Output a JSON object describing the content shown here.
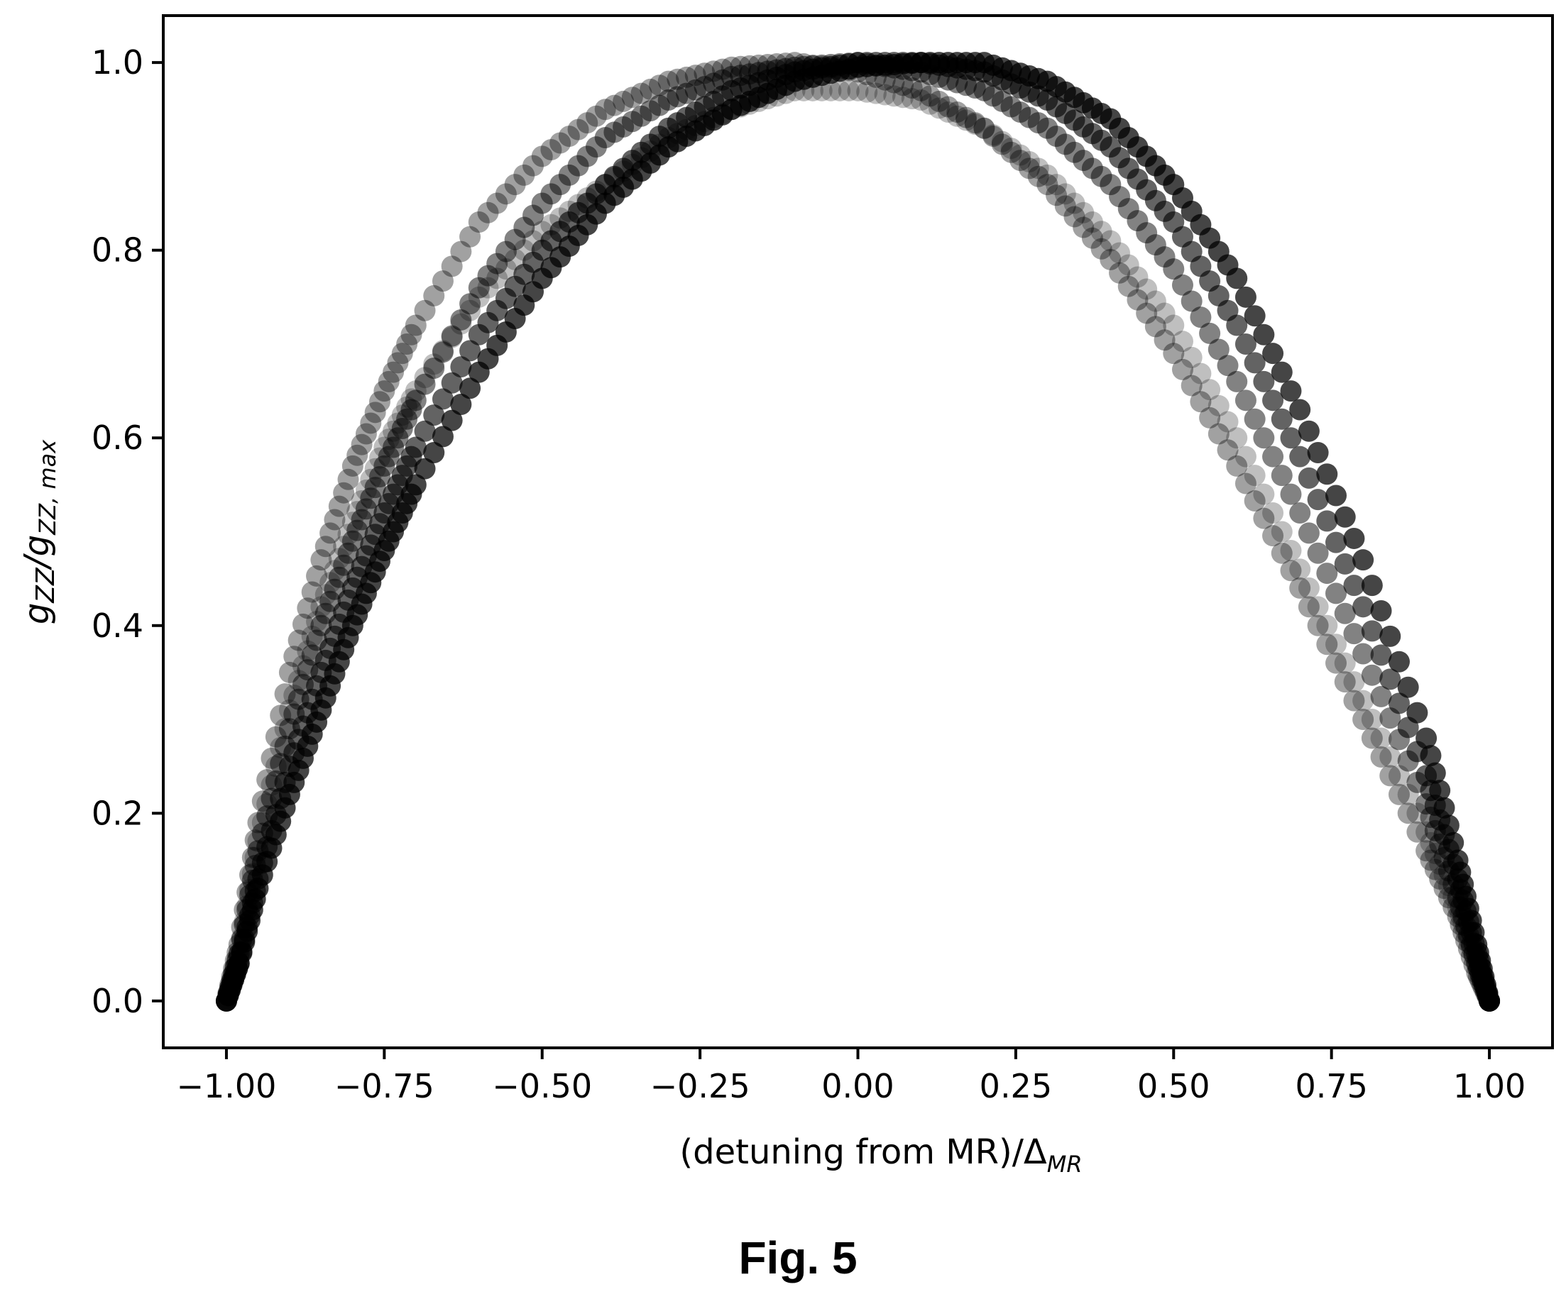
{
  "figure": {
    "caption": "Fig. 5"
  },
  "chart_data": {
    "type": "scatter",
    "title": "",
    "xlabel": {
      "main": "(detuning from MR)/Δ",
      "sub": "MR"
    },
    "ylabel": {
      "main": "g",
      "sub1": "ZZ",
      "sep": "/g",
      "sub2": "ZZ, max"
    },
    "xlim": [
      -1.1,
      1.1
    ],
    "ylim": [
      -0.05,
      1.05
    ],
    "xticks": [
      -1.0,
      -0.75,
      -0.5,
      -0.25,
      0.0,
      0.25,
      0.5,
      0.75,
      1.0
    ],
    "xtick_labels": [
      "−1.00",
      "−0.75",
      "−0.50",
      "−0.25",
      "0.00",
      "0.25",
      "0.50",
      "0.75",
      "1.00"
    ],
    "yticks": [
      0.0,
      0.2,
      0.4,
      0.6,
      0.8,
      1.0
    ],
    "ytick_labels": [
      "0.0",
      "0.2",
      "0.4",
      "0.6",
      "0.8",
      "1.0"
    ],
    "grid": false,
    "legend": "none",
    "marker_color": "#000000",
    "series": [
      {
        "values": [
          [
            -1.0,
            0.0
          ],
          [
            -0.98,
            0.05
          ],
          [
            -0.95,
            0.17
          ],
          [
            -0.9,
            0.31
          ],
          [
            -0.85,
            0.42
          ],
          [
            -0.8,
            0.51
          ],
          [
            -0.75,
            0.59
          ],
          [
            -0.7,
            0.65
          ],
          [
            -0.6,
            0.75
          ],
          [
            -0.5,
            0.82
          ],
          [
            -0.4,
            0.87
          ],
          [
            -0.3,
            0.92
          ],
          [
            -0.2,
            0.95
          ],
          [
            -0.1,
            0.97
          ],
          [
            0.0,
            0.97
          ],
          [
            0.1,
            0.96
          ],
          [
            0.2,
            0.93
          ],
          [
            0.3,
            0.88
          ],
          [
            0.4,
            0.81
          ],
          [
            0.5,
            0.72
          ],
          [
            0.6,
            0.6
          ],
          [
            0.7,
            0.46
          ],
          [
            0.8,
            0.32
          ],
          [
            0.9,
            0.18
          ],
          [
            0.95,
            0.1
          ],
          [
            0.98,
            0.04
          ],
          [
            1.0,
            0.0
          ]
        ]
      },
      {
        "values": [
          [
            -1.0,
            0.0
          ],
          [
            -0.98,
            0.06
          ],
          [
            -0.95,
            0.19
          ],
          [
            -0.9,
            0.35
          ],
          [
            -0.85,
            0.47
          ],
          [
            -0.8,
            0.57
          ],
          [
            -0.75,
            0.65
          ],
          [
            -0.7,
            0.72
          ],
          [
            -0.6,
            0.83
          ],
          [
            -0.5,
            0.9
          ],
          [
            -0.4,
            0.95
          ],
          [
            -0.3,
            0.98
          ],
          [
            -0.2,
            0.995
          ],
          [
            -0.1,
            1.0
          ],
          [
            0.0,
            0.99
          ],
          [
            0.1,
            0.97
          ],
          [
            0.2,
            0.93
          ],
          [
            0.3,
            0.87
          ],
          [
            0.4,
            0.79
          ],
          [
            0.5,
            0.69
          ],
          [
            0.6,
            0.57
          ],
          [
            0.7,
            0.44
          ],
          [
            0.8,
            0.3
          ],
          [
            0.9,
            0.16
          ],
          [
            0.95,
            0.09
          ],
          [
            0.98,
            0.03
          ],
          [
            1.0,
            0.0
          ]
        ]
      },
      {
        "values": [
          [
            -1.0,
            0.0
          ],
          [
            -0.98,
            0.05
          ],
          [
            -0.95,
            0.16
          ],
          [
            -0.9,
            0.29
          ],
          [
            -0.85,
            0.4
          ],
          [
            -0.8,
            0.49
          ],
          [
            -0.75,
            0.57
          ],
          [
            -0.7,
            0.64
          ],
          [
            -0.6,
            0.76
          ],
          [
            -0.5,
            0.85
          ],
          [
            -0.4,
            0.92
          ],
          [
            -0.3,
            0.96
          ],
          [
            -0.2,
            0.985
          ],
          [
            -0.1,
            0.995
          ],
          [
            0.0,
            1.0
          ],
          [
            0.1,
            0.99
          ],
          [
            0.2,
            0.97
          ],
          [
            0.3,
            0.93
          ],
          [
            0.4,
            0.87
          ],
          [
            0.5,
            0.78
          ],
          [
            0.6,
            0.66
          ],
          [
            0.7,
            0.52
          ],
          [
            0.8,
            0.37
          ],
          [
            0.9,
            0.21
          ],
          [
            0.95,
            0.11
          ],
          [
            0.98,
            0.04
          ],
          [
            1.0,
            0.0
          ]
        ]
      },
      {
        "values": [
          [
            -1.0,
            0.0
          ],
          [
            -0.98,
            0.04
          ],
          [
            -0.95,
            0.13
          ],
          [
            -0.9,
            0.25
          ],
          [
            -0.85,
            0.35
          ],
          [
            -0.8,
            0.44
          ],
          [
            -0.75,
            0.52
          ],
          [
            -0.7,
            0.59
          ],
          [
            -0.6,
            0.71
          ],
          [
            -0.5,
            0.8
          ],
          [
            -0.4,
            0.87
          ],
          [
            -0.3,
            0.93
          ],
          [
            -0.2,
            0.97
          ],
          [
            -0.1,
            0.99
          ],
          [
            0.0,
            1.0
          ],
          [
            0.1,
            1.0
          ],
          [
            0.2,
            0.99
          ],
          [
            0.3,
            0.96
          ],
          [
            0.4,
            0.91
          ],
          [
            0.5,
            0.83
          ],
          [
            0.6,
            0.72
          ],
          [
            0.7,
            0.58
          ],
          [
            0.8,
            0.42
          ],
          [
            0.9,
            0.24
          ],
          [
            0.95,
            0.13
          ],
          [
            0.98,
            0.05
          ],
          [
            1.0,
            0.0
          ]
        ]
      },
      {
        "values": [
          [
            -1.0,
            0.0
          ],
          [
            -0.98,
            0.04
          ],
          [
            -0.95,
            0.12
          ],
          [
            -0.9,
            0.22
          ],
          [
            -0.85,
            0.31
          ],
          [
            -0.8,
            0.4
          ],
          [
            -0.75,
            0.48
          ],
          [
            -0.7,
            0.55
          ],
          [
            -0.6,
            0.67
          ],
          [
            -0.5,
            0.77
          ],
          [
            -0.4,
            0.85
          ],
          [
            -0.3,
            0.91
          ],
          [
            -0.2,
            0.95
          ],
          [
            -0.1,
            0.98
          ],
          [
            0.0,
            0.995
          ],
          [
            0.1,
            1.0
          ],
          [
            0.2,
            1.0
          ],
          [
            0.3,
            0.98
          ],
          [
            0.4,
            0.94
          ],
          [
            0.5,
            0.87
          ],
          [
            0.6,
            0.77
          ],
          [
            0.7,
            0.63
          ],
          [
            0.8,
            0.47
          ],
          [
            0.9,
            0.28
          ],
          [
            0.95,
            0.15
          ],
          [
            0.98,
            0.06
          ],
          [
            1.0,
            0.0
          ]
        ]
      }
    ]
  }
}
